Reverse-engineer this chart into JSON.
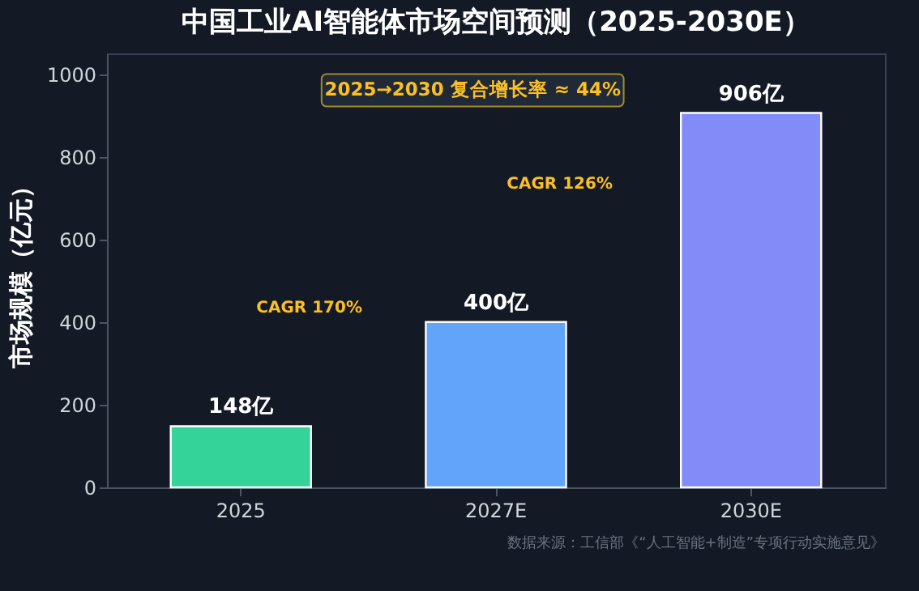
{
  "chart_data": {
    "type": "bar",
    "title": "中国工业AI智能体市场空间预测（2025-2030E）",
    "ylabel": "市场规模（亿元）",
    "categories": [
      "2025",
      "2027E",
      "2030E"
    ],
    "values": [
      148,
      400,
      906
    ],
    "colors": [
      "#34d399",
      "#60a5fa",
      "#818cf8"
    ],
    "value_labels": [
      "148亿",
      "400亿",
      "906亿"
    ],
    "ylim": [
      0,
      1050
    ],
    "yticks": [
      0,
      200,
      400,
      600,
      800,
      1000
    ],
    "grid": false,
    "annotations": [
      "CAGR 170%",
      "CAGR 126%",
      "2025→2030 复合增长率 ≈ 44%",
      "数据来源：工信部《“人工智能+制造”专项行动实施意见》"
    ]
  }
}
